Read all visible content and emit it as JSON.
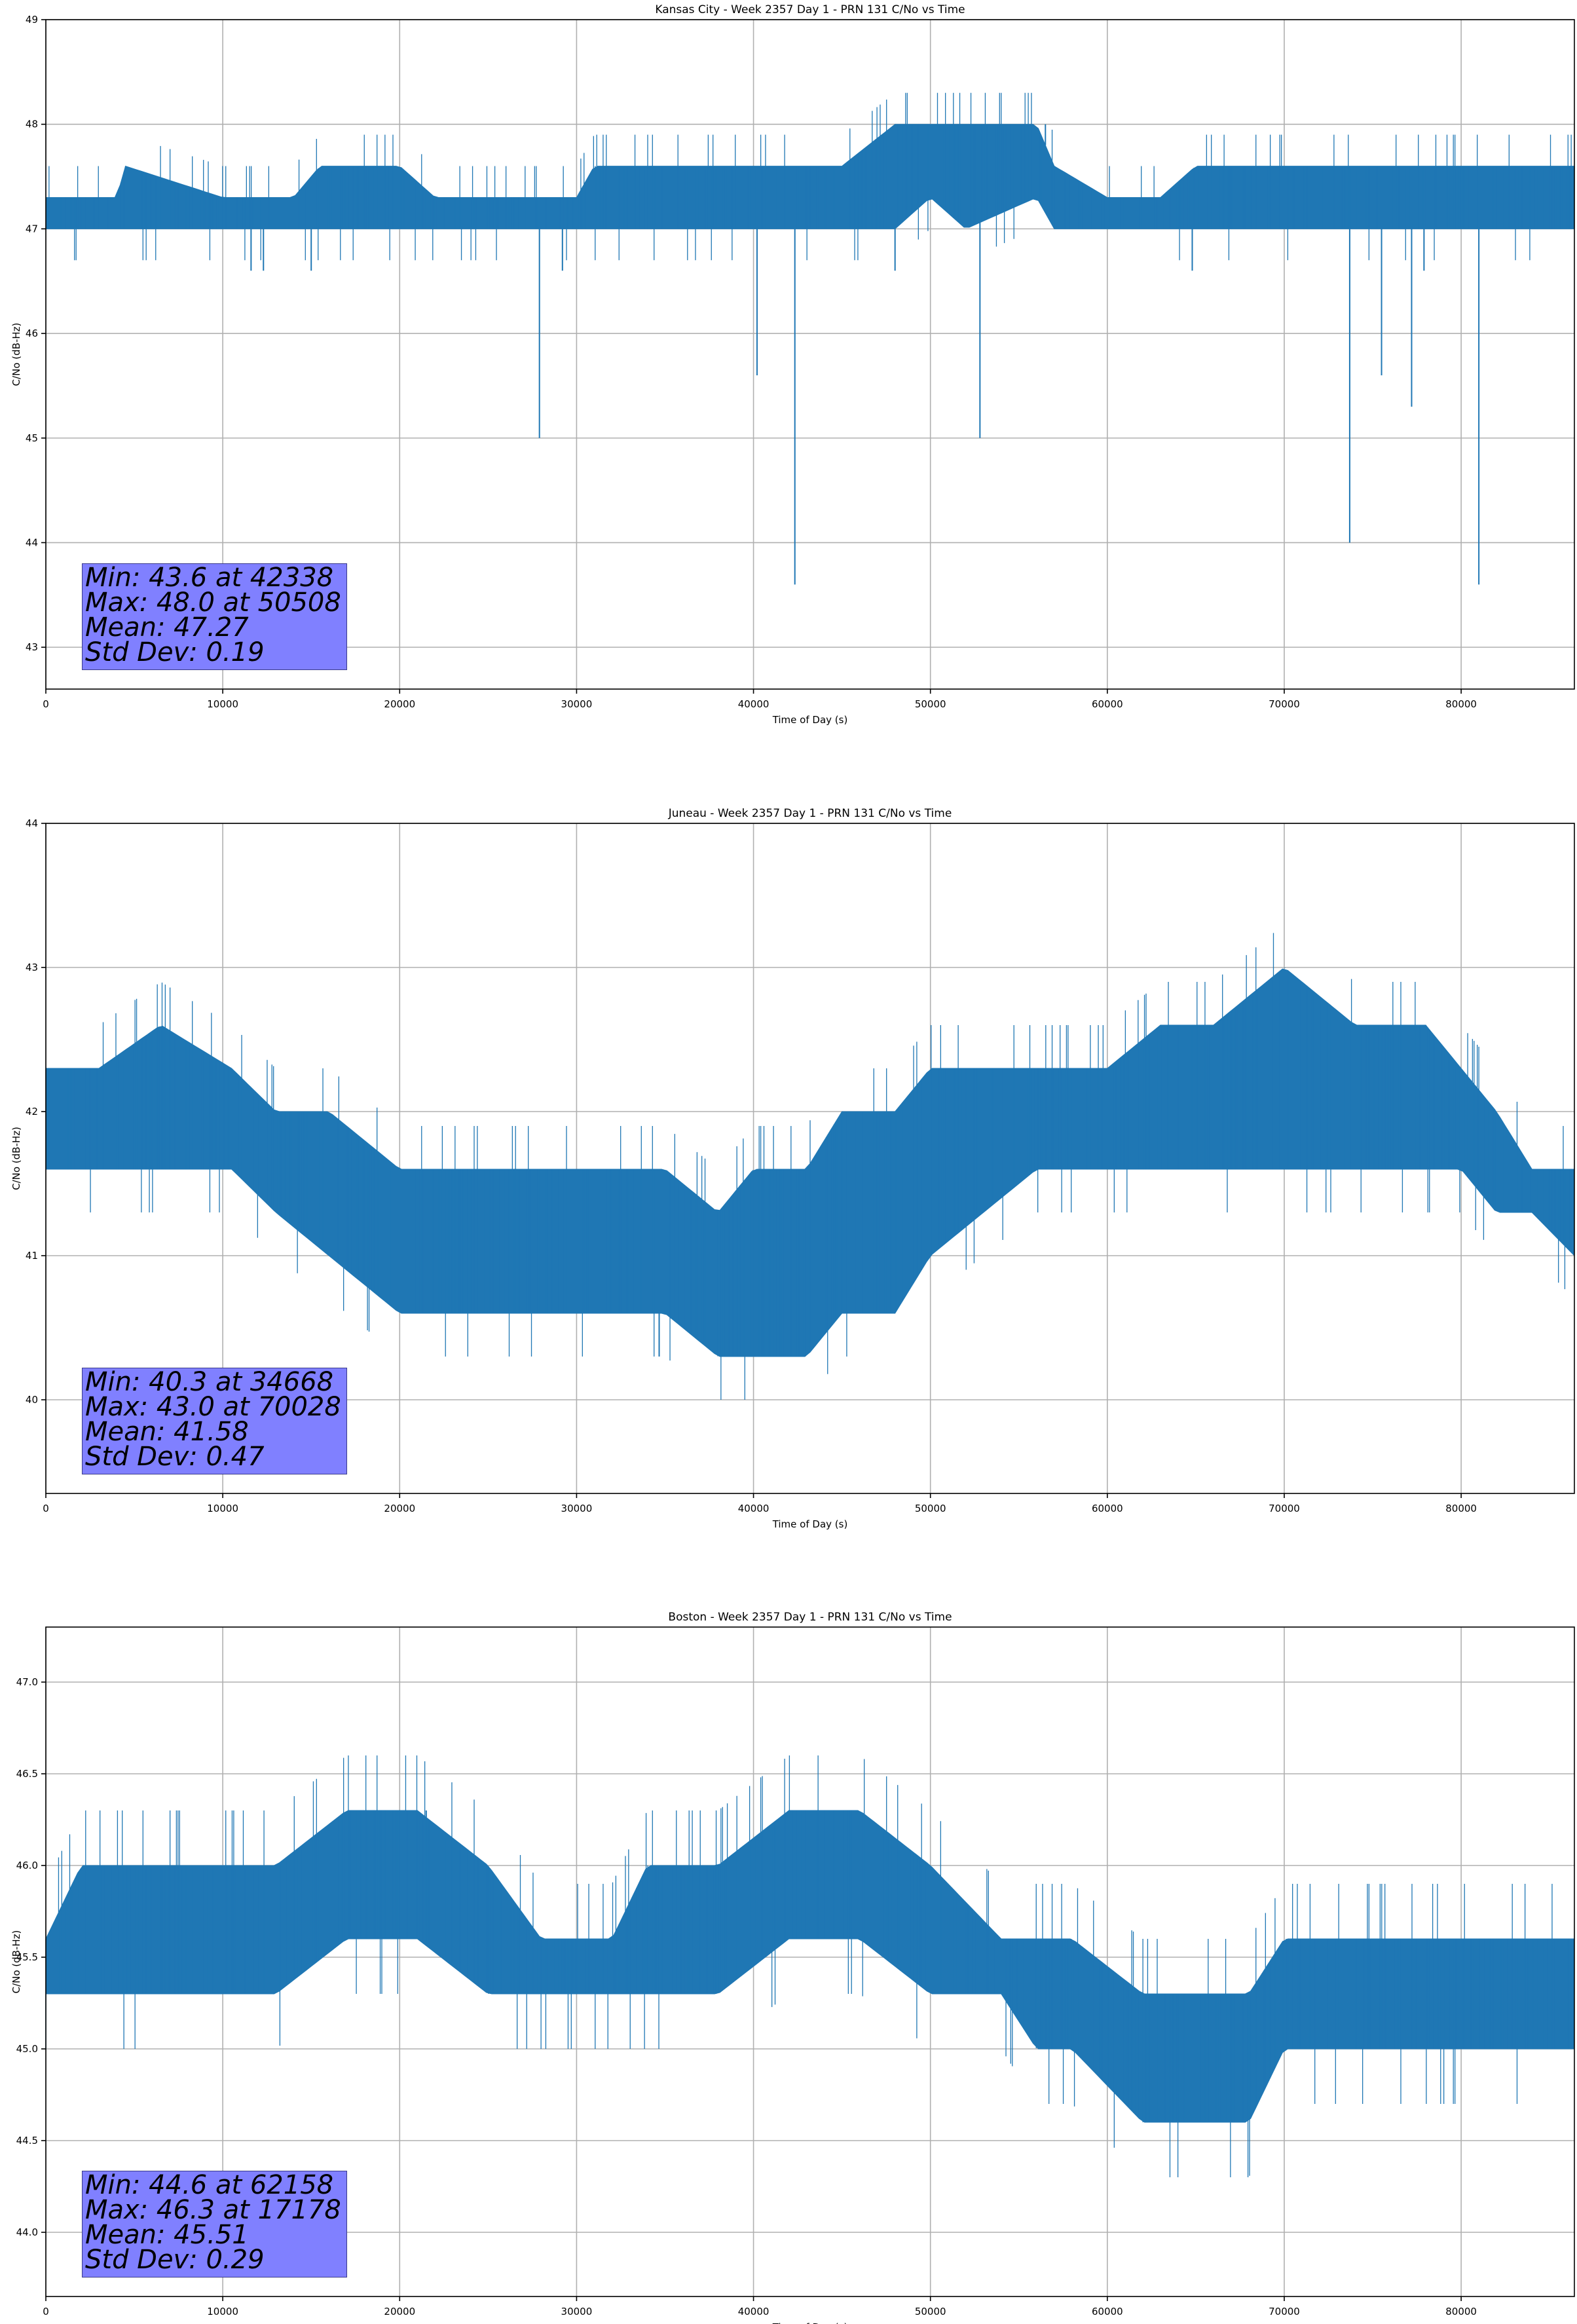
{
  "chart_data": [
    {
      "type": "line",
      "title": "Kansas City - Week 2357 Day 1 - PRN 131 C/No vs Time",
      "xlabel": "Time of Day (s)",
      "ylabel": "C/No (dB-Hz)",
      "xlim": [
        0,
        86400
      ],
      "ylim": [
        42.6,
        49.0
      ],
      "xticks": [
        "0",
        "10000",
        "20000",
        "30000",
        "40000",
        "50000",
        "60000",
        "70000",
        "80000"
      ],
      "yticks": [
        "43",
        "44",
        "45",
        "46",
        "47",
        "48",
        "49"
      ],
      "grid": true,
      "color": "#1f77b4",
      "series_envelope": {
        "x": [
          0,
          4000,
          4500,
          10000,
          14000,
          15500,
          20000,
          22000,
          28000,
          30000,
          31000,
          35000,
          39000,
          40000,
          42000,
          45000,
          48000,
          50000,
          52000,
          56000,
          57000,
          60000,
          63000,
          65000,
          67000,
          70000,
          72000,
          74000,
          76000,
          80000,
          83000,
          86400
        ],
        "low": [
          47.0,
          47.0,
          47.0,
          47.0,
          47.0,
          47.0,
          47.0,
          47.0,
          47.0,
          47.0,
          47.0,
          47.0,
          47.0,
          47.0,
          47.0,
          47.0,
          47.0,
          47.3,
          47.0,
          47.3,
          47.0,
          47.0,
          47.0,
          47.0,
          47.0,
          47.0,
          47.0,
          47.0,
          47.0,
          47.0,
          47.0,
          47.0
        ],
        "high": [
          47.3,
          47.3,
          47.6,
          47.3,
          47.3,
          47.6,
          47.6,
          47.3,
          47.3,
          47.3,
          47.6,
          47.6,
          47.6,
          47.6,
          47.6,
          47.6,
          48.0,
          48.0,
          48.0,
          48.0,
          47.6,
          47.3,
          47.3,
          47.6,
          47.6,
          47.6,
          47.6,
          47.6,
          47.6,
          47.6,
          47.6,
          47.6
        ]
      },
      "dips": [
        [
          11600,
          46.6
        ],
        [
          12300,
          46.6
        ],
        [
          15000,
          46.6
        ],
        [
          27900,
          45.0
        ],
        [
          29200,
          46.6
        ],
        [
          40200,
          45.6
        ],
        [
          42338,
          43.6
        ],
        [
          48000,
          46.6
        ],
        [
          52800,
          45.0
        ],
        [
          64800,
          46.6
        ],
        [
          73700,
          44.0
        ],
        [
          75500,
          45.6
        ],
        [
          77200,
          45.3
        ],
        [
          77900,
          46.6
        ],
        [
          81000,
          43.6
        ]
      ],
      "spikes": [
        [
          50508,
          48.0
        ],
        [
          53000,
          48.0
        ],
        [
          56500,
          48.0
        ]
      ],
      "stats": [
        "Min: 43.6 at 42338",
        "Max: 48.0 at 50508",
        "Mean: 47.27",
        "Std Dev: 0.19"
      ]
    },
    {
      "type": "line",
      "title": "Juneau - Week 2357 Day 1 - PRN 131 C/No vs Time",
      "xlabel": "Time of Day (s)",
      "ylabel": "C/No (dB-Hz)",
      "xlim": [
        0,
        86400
      ],
      "ylim": [
        39.35,
        44.0
      ],
      "xticks": [
        "0",
        "10000",
        "20000",
        "30000",
        "40000",
        "50000",
        "60000",
        "70000",
        "80000"
      ],
      "yticks": [
        "40",
        "41",
        "42",
        "43",
        "44"
      ],
      "grid": true,
      "color": "#1f77b4",
      "series_envelope": {
        "x": [
          0,
          3000,
          6500,
          10500,
          13000,
          16000,
          20000,
          24000,
          28000,
          32000,
          35000,
          38000,
          40000,
          43000,
          45000,
          48000,
          50000,
          53000,
          56000,
          60000,
          63000,
          66000,
          70000,
          74000,
          78000,
          80000,
          82000,
          84000,
          86400
        ],
        "low": [
          41.6,
          41.6,
          41.6,
          41.6,
          41.3,
          41.0,
          40.6,
          40.6,
          40.6,
          40.6,
          40.6,
          40.3,
          40.3,
          40.3,
          40.6,
          40.6,
          41.0,
          41.3,
          41.6,
          41.6,
          41.6,
          41.6,
          41.6,
          41.6,
          41.6,
          41.6,
          41.3,
          41.3,
          41.0
        ],
        "high": [
          42.3,
          42.3,
          42.6,
          42.3,
          42.0,
          42.0,
          41.6,
          41.6,
          41.6,
          41.6,
          41.6,
          41.3,
          41.6,
          41.6,
          42.0,
          42.0,
          42.3,
          42.3,
          42.3,
          42.3,
          42.6,
          42.6,
          43.0,
          42.6,
          42.6,
          42.3,
          42.0,
          41.6,
          41.6
        ]
      },
      "dips": [
        [
          34668,
          40.3
        ]
      ],
      "spikes": [
        [
          70028,
          43.0
        ]
      ],
      "stats": [
        "Min: 40.3 at 34668",
        "Max: 43.0 at 70028",
        "Mean: 41.58",
        "Std Dev: 0.47"
      ]
    },
    {
      "type": "line",
      "title": "Boston - Week 2357 Day 1 - PRN 131 C/No vs Time",
      "xlabel": "Time of Day (s)",
      "ylabel": "C/No (dB-Hz)",
      "xlim": [
        0,
        86400
      ],
      "ylim": [
        43.65,
        47.3
      ],
      "xticks": [
        "0",
        "10000",
        "20000",
        "30000",
        "40000",
        "50000",
        "60000",
        "70000",
        "80000"
      ],
      "yticks": [
        "44.0",
        "44.5",
        "45.0",
        "45.5",
        "46.0",
        "46.5",
        "47.0"
      ],
      "grid": true,
      "color": "#1f77b4",
      "series_envelope": {
        "x": [
          0,
          2000,
          5000,
          9000,
          13000,
          17000,
          21000,
          25000,
          28000,
          32000,
          34000,
          38000,
          42000,
          46000,
          50000,
          54000,
          56000,
          58000,
          62000,
          64000,
          66000,
          68000,
          70000,
          72000,
          74000,
          78000,
          82000,
          86400
        ],
        "low": [
          45.3,
          45.3,
          45.3,
          45.3,
          45.3,
          45.6,
          45.6,
          45.3,
          45.3,
          45.3,
          45.3,
          45.3,
          45.6,
          45.6,
          45.3,
          45.3,
          45.0,
          45.0,
          44.6,
          44.6,
          44.6,
          44.6,
          45.0,
          45.0,
          45.0,
          45.0,
          45.0,
          45.0
        ],
        "high": [
          45.6,
          46.0,
          46.0,
          46.0,
          46.0,
          46.3,
          46.3,
          46.0,
          45.6,
          45.6,
          46.0,
          46.0,
          46.3,
          46.3,
          46.0,
          45.6,
          45.6,
          45.6,
          45.3,
          45.3,
          45.3,
          45.3,
          45.6,
          45.6,
          45.6,
          45.6,
          45.6,
          45.6
        ]
      },
      "dips": [],
      "spikes": [
        [
          17178,
          46.3
        ],
        [
          21500,
          46.3
        ],
        [
          42300,
          46.3
        ]
      ],
      "stats": [
        "Min: 44.6 at 62158",
        "Max: 46.3 at 17178",
        "Mean: 45.51",
        "Std Dev: 0.29"
      ]
    }
  ]
}
